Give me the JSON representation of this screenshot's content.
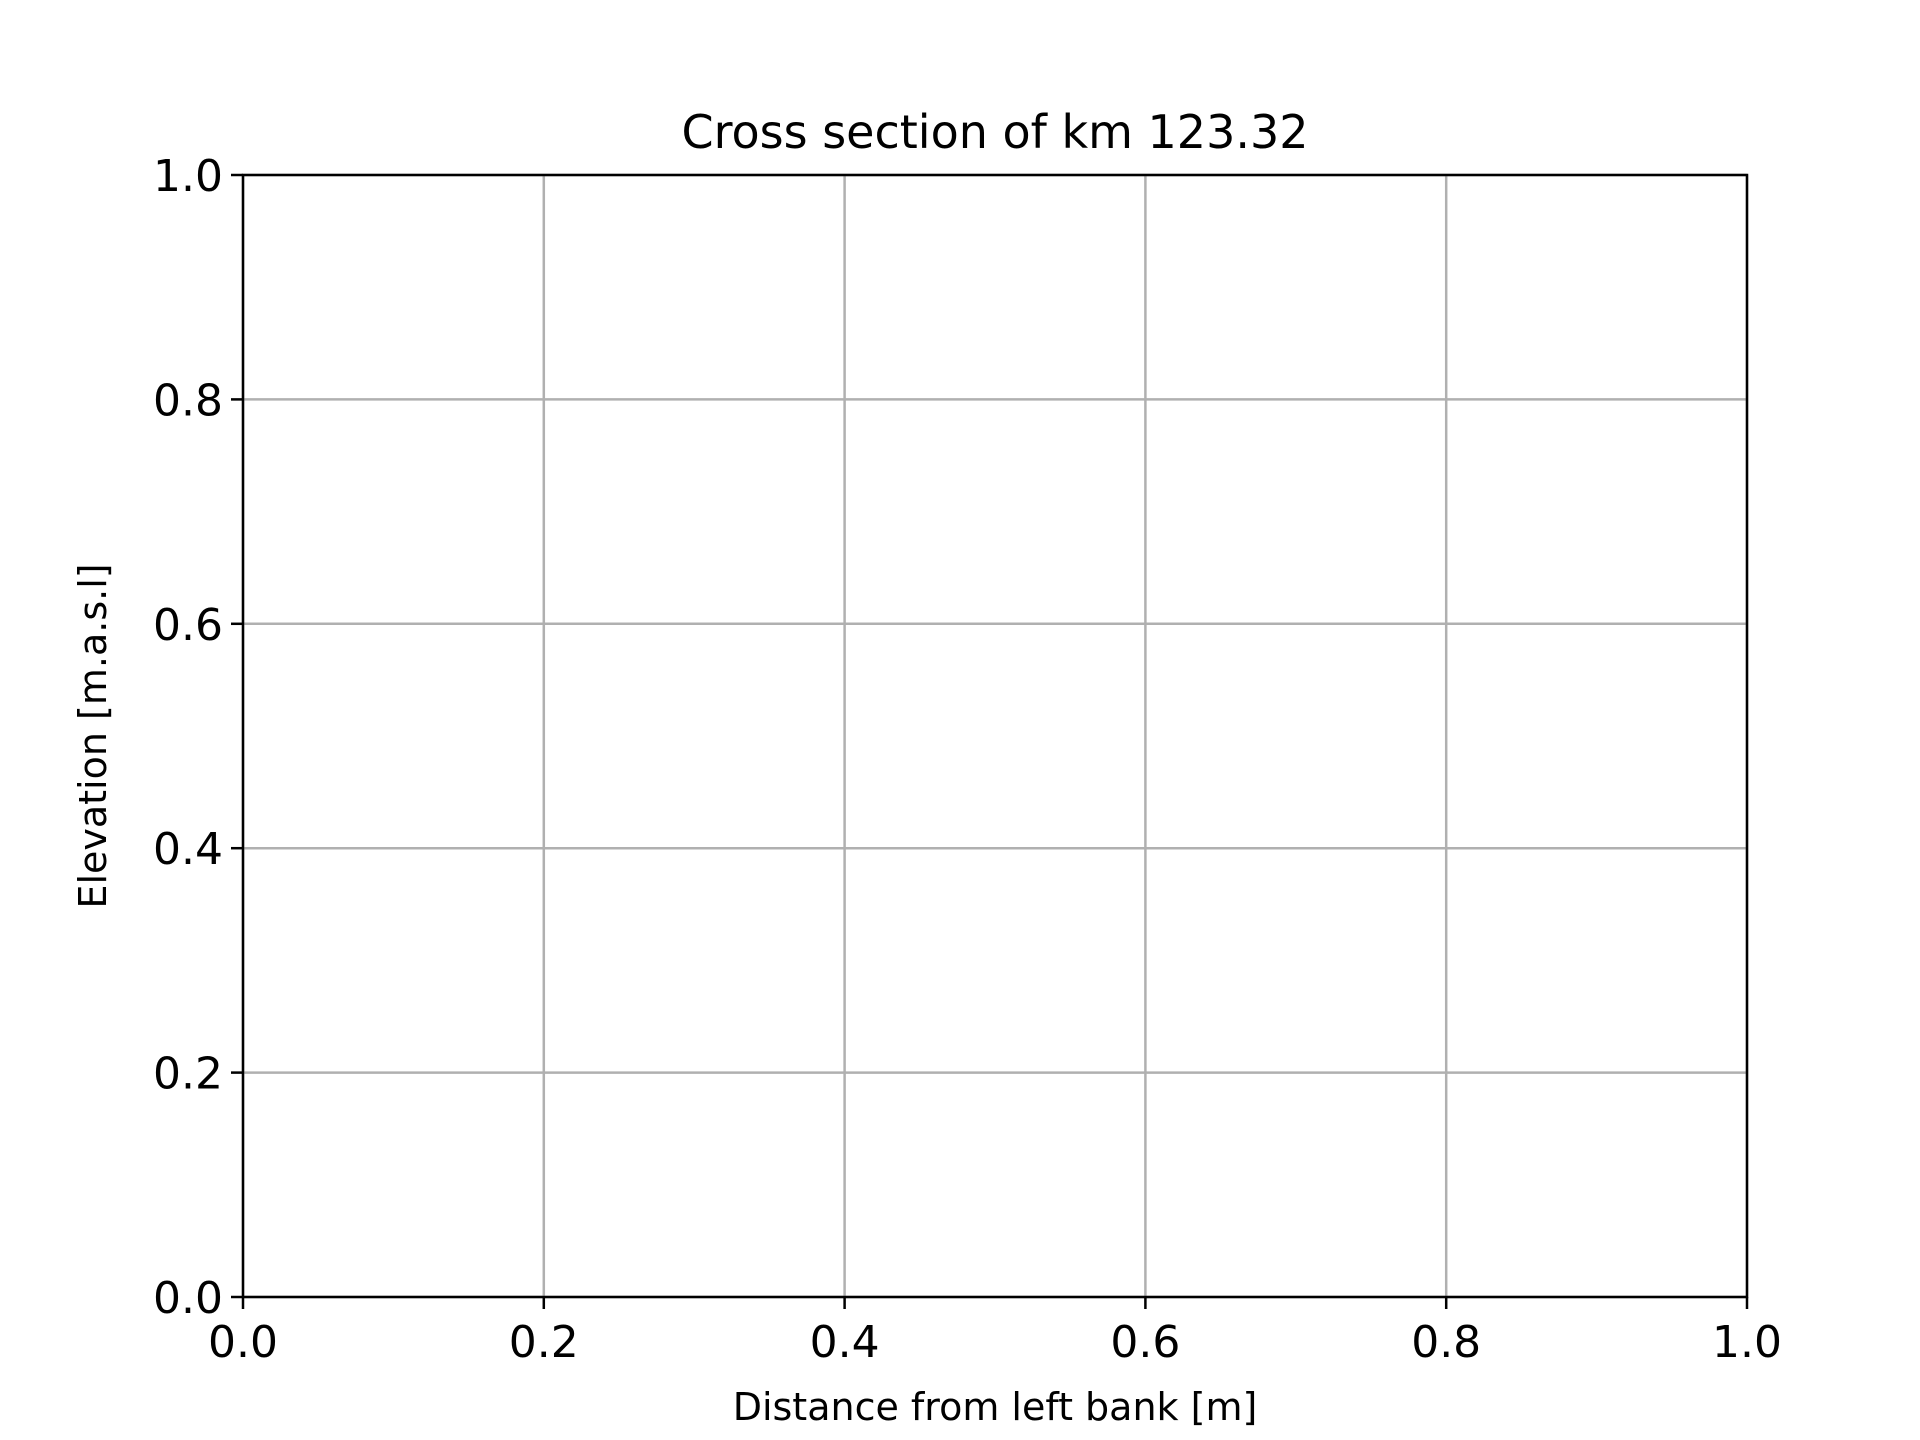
{
  "chart_data": {
    "type": "line",
    "title": "Cross section of km 123.32",
    "xlabel": "Distance from left bank [m]",
    "ylabel": "Elevation [m.a.s.l]",
    "xlim": [
      0.0,
      1.0
    ],
    "ylim": [
      0.0,
      1.0
    ],
    "x_ticks": [
      0.0,
      0.2,
      0.4,
      0.6,
      0.8,
      1.0
    ],
    "x_tick_labels": [
      "0.0",
      "0.2",
      "0.4",
      "0.6",
      "0.8",
      "1.0"
    ],
    "y_ticks": [
      0.0,
      0.2,
      0.4,
      0.6,
      0.8,
      1.0
    ],
    "y_tick_labels": [
      "0.0",
      "0.2",
      "0.4",
      "0.6",
      "0.8",
      "1.0"
    ],
    "grid": true,
    "series": [],
    "colors": {
      "grid": "#b0b0b0",
      "axes": "#000000",
      "background": "#ffffff"
    }
  }
}
